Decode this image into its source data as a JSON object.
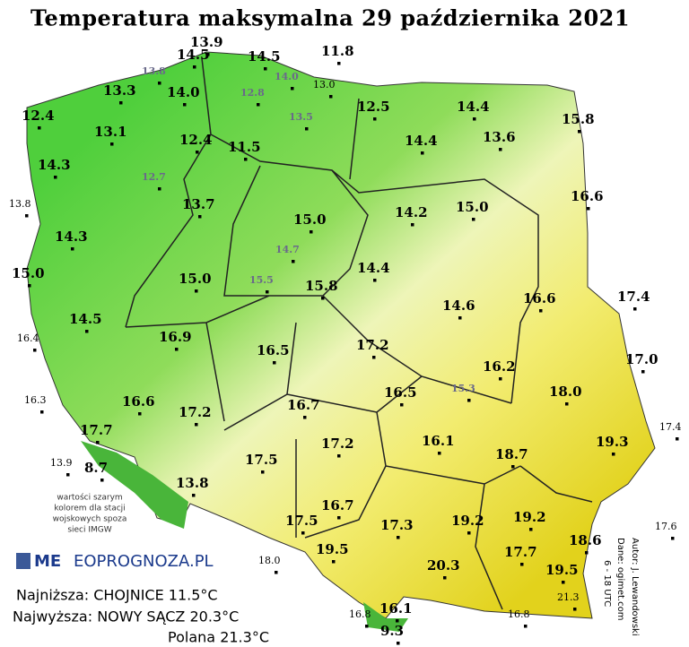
{
  "title": "Temperatura maksymalna 29 października 2021",
  "stations": [
    "13.9",
    "14.5",
    "14.5",
    "11.8",
    "13.8",
    "13.3",
    "14.0",
    "14.0",
    "12.8",
    "13.0",
    "13.5",
    "12.5",
    "14.4",
    "15.8",
    "12.4",
    "13.1",
    "12.4",
    "11.5",
    "14.4",
    "13.6",
    "14.3",
    "12.7",
    "13.8",
    "13.7",
    "15.0",
    "14.2",
    "15.0",
    "16.6",
    "14.3",
    "14.7",
    "15.0",
    "15.0",
    "15.5",
    "15.8",
    "14.4",
    "14.6",
    "16.6",
    "17.4",
    "14.5",
    "16.4",
    "16.9",
    "16.5",
    "17.2",
    "16.2",
    "17.0",
    "16.3",
    "16.6",
    "17.2",
    "16.7",
    "16.5",
    "15.3",
    "18.0",
    "17.4",
    "17.7",
    "17.2",
    "16.1",
    "18.7",
    "19.3",
    "13.9",
    "8.7",
    "13.8",
    "17.5",
    "16.7",
    "17.5",
    "17.3",
    "19.2",
    "19.2",
    "17.6",
    "18.6",
    "17.7",
    "19.5",
    "18.0",
    "20.3",
    "19.5",
    "21.3",
    "16.8",
    "16.1",
    "9.3",
    "16.8"
  ],
  "note": [
    "wartości szarym",
    "kolorem dla stacji",
    "wojskowych spoza",
    "sieci IMGW"
  ],
  "logo": [
    "ME",
    "EOPROGNOZA.PL"
  ],
  "summary": {
    "lowest": "Najniższa: CHOJNICE 11.5°C",
    "highest": "Najwyższa: NOWY SĄCZ 20.3°C",
    "extra": "Polana 21.3°C"
  },
  "credits": [
    "Autor: J. Lewandowski",
    "Dane: ogimet.com",
    "6 - 18 UTC"
  ]
}
